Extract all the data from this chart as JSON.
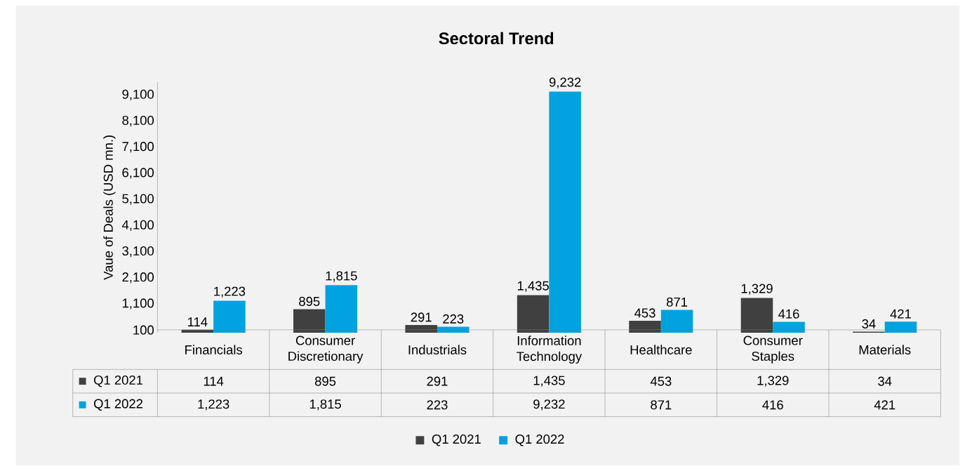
{
  "chart_data": {
    "type": "bar",
    "title": "Sectoral Trend",
    "ylabel": "Vaue of Deals (USD mn.)",
    "categories": [
      "Financials",
      "Consumer Discretionary",
      "Industrials",
      "Information Technology",
      "Healthcare",
      "Consumer Staples",
      "Materials"
    ],
    "series": [
      {
        "name": "Q1 2021",
        "color": "#404040",
        "values": [
          114,
          895,
          291,
          1435,
          453,
          1329,
          34
        ],
        "value_labels": [
          "114",
          "895",
          "291",
          "1,435",
          "453",
          "1,329",
          "34"
        ]
      },
      {
        "name": "Q1 2022",
        "color": "#00a2e0",
        "values": [
          1223,
          1815,
          223,
          9232,
          871,
          416,
          421
        ],
        "value_labels": [
          "1,223",
          "1,815",
          "223",
          "9,232",
          "871",
          "416",
          "421"
        ]
      }
    ],
    "ylim": [
      0,
      9600
    ],
    "yticks": [
      {
        "value": 100,
        "label": "100"
      },
      {
        "value": 1100,
        "label": "1,100"
      },
      {
        "value": 2100,
        "label": "2,100"
      },
      {
        "value": 3100,
        "label": "3,100"
      },
      {
        "value": 4100,
        "label": "4,100"
      },
      {
        "value": 5100,
        "label": "5,100"
      },
      {
        "value": 6100,
        "label": "6,100"
      },
      {
        "value": 7100,
        "label": "7,100"
      },
      {
        "value": 8100,
        "label": "8,100"
      },
      {
        "value": 9100,
        "label": "9,100"
      }
    ],
    "legend": "bottom"
  }
}
